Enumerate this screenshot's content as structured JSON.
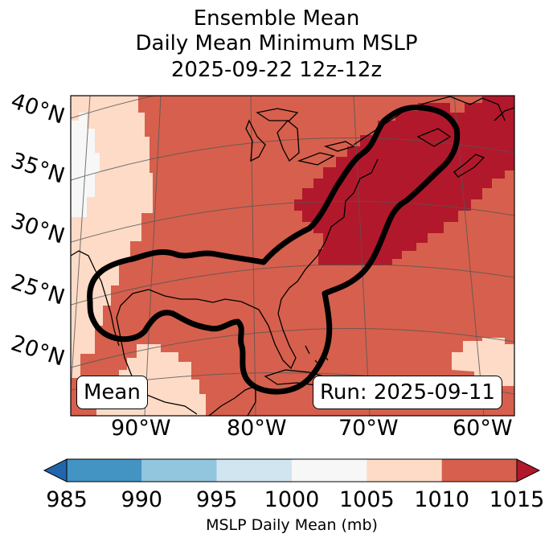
{
  "title": {
    "line1": "Ensemble Mean",
    "line2": "Daily Mean Minimum MSLP",
    "line3": "2025-09-22 12z-12z"
  },
  "latitude_labels": [
    "40°N",
    "35°N",
    "30°N",
    "25°N",
    "20°N"
  ],
  "longitude_labels": [
    "90°W",
    "80°W",
    "70°W",
    "60°W"
  ],
  "badges": {
    "left": "Mean",
    "right": "Run: 2025-09-11"
  },
  "colorbar": {
    "ticks": [
      "985",
      "990",
      "995",
      "1000",
      "1005",
      "1010",
      "1015"
    ],
    "label": "MSLP Daily Mean (mb)",
    "colors": {
      "below_985": "#2166ac",
      "985_990": "#4393c3",
      "990_995": "#92c5de",
      "995_1000": "#d1e5f0",
      "1000_1005": "#f7f7f7",
      "1005_1010": "#fddbc7",
      "1010_1015": "#d6604d",
      "above_1015": "#b2182b"
    }
  }
}
